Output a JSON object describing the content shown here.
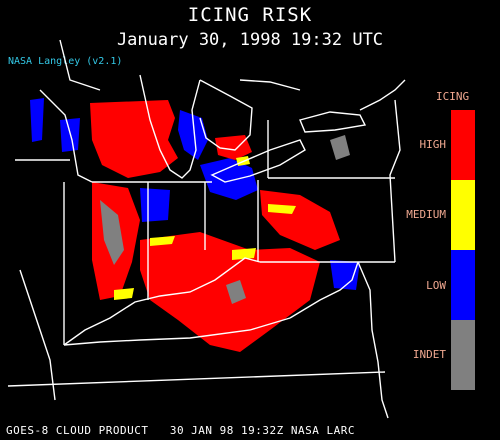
{
  "header": {
    "title": "ICING RISK",
    "subtitle": "January 30, 1998 19:32 UTC",
    "credit": "NASA Langley (v2.1)"
  },
  "legend": {
    "title": "ICING",
    "items": [
      {
        "label": "HIGH",
        "color": "#ff0000"
      },
      {
        "label": "MEDIUM",
        "color": "#ffff00"
      },
      {
        "label": "LOW",
        "color": "#0000ff"
      },
      {
        "label": "INDET",
        "color": "#808080"
      }
    ]
  },
  "footer": {
    "text": "GOES-8 CLOUD PRODUCT   30 JAN 98 19:32Z NASA LARC"
  },
  "colors": {
    "background": "#000000",
    "borders": "#ffffff",
    "credit": "#33c8e6",
    "legend_text": "#f0a890"
  }
}
